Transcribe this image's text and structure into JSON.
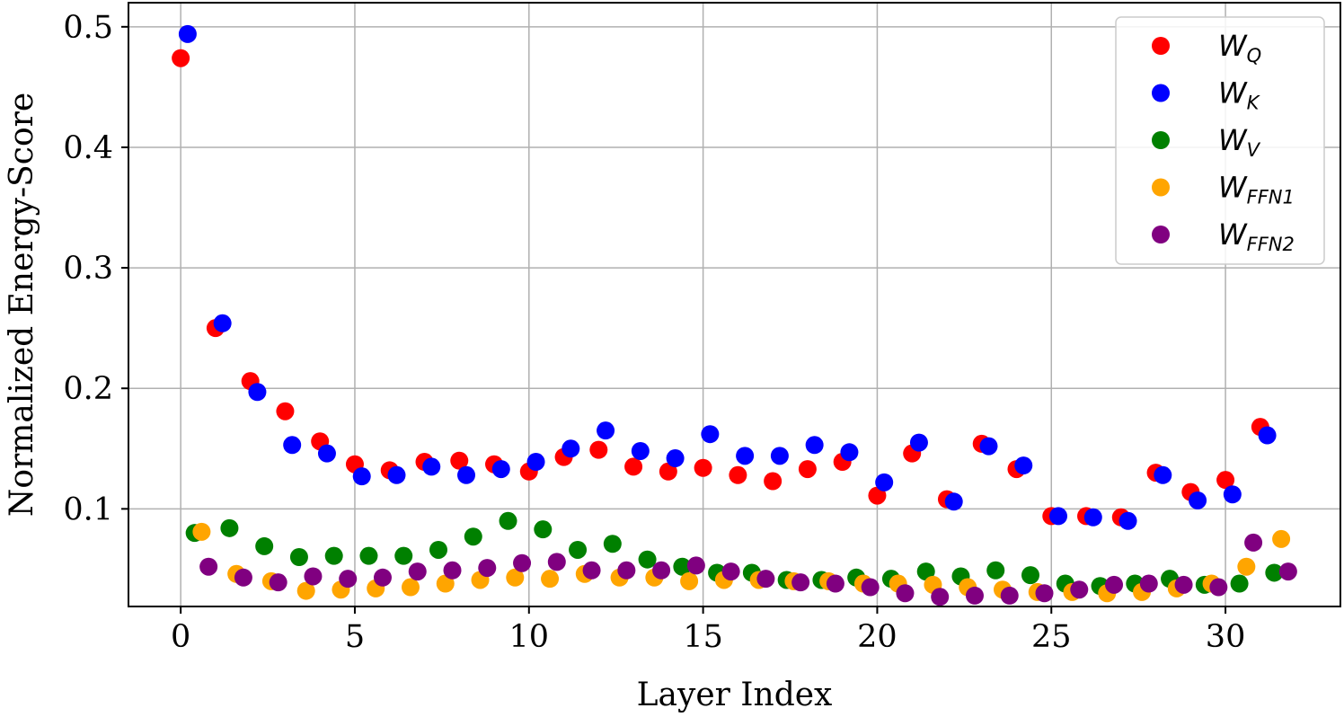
{
  "chart_data": {
    "type": "scatter",
    "xlabel": "Layer Index",
    "ylabel": "Normalized Energy-Score",
    "xlim": [
      -1.5,
      33.3
    ],
    "ylim": [
      0.019,
      0.52
    ],
    "xticks": [
      0,
      5,
      10,
      15,
      20,
      25,
      30
    ],
    "yticks": [
      0.1,
      0.2,
      0.3,
      0.4,
      0.5
    ],
    "x_tick_labels": [
      "0",
      "5",
      "10",
      "15",
      "20",
      "25",
      "30"
    ],
    "y_tick_labels": [
      "0.1",
      "0.2",
      "0.3",
      "0.4",
      "0.5"
    ],
    "grid": true,
    "legend_position": "top-right",
    "x": [
      0,
      1,
      2,
      3,
      4,
      5,
      6,
      7,
      8,
      9,
      10,
      11,
      12,
      13,
      14,
      15,
      16,
      17,
      18,
      19,
      20,
      21,
      22,
      23,
      24,
      25,
      26,
      27,
      28,
      29,
      30,
      31
    ],
    "series": [
      {
        "name": "W",
        "sub": "Q",
        "color": "#ff0000",
        "x_offset": 0.0,
        "values": [
          0.474,
          0.25,
          0.206,
          0.181,
          0.156,
          0.137,
          0.132,
          0.139,
          0.14,
          0.137,
          0.131,
          0.143,
          0.149,
          0.135,
          0.131,
          0.134,
          0.128,
          0.123,
          0.133,
          0.139,
          0.111,
          0.146,
          0.108,
          0.154,
          0.133,
          0.094,
          0.094,
          0.093,
          0.13,
          0.114,
          0.124,
          0.168
        ]
      },
      {
        "name": "W",
        "sub": "K",
        "color": "#0000ff",
        "x_offset": 0.2,
        "values": [
          0.494,
          0.254,
          0.197,
          0.153,
          0.146,
          0.127,
          0.128,
          0.135,
          0.128,
          0.133,
          0.139,
          0.15,
          0.165,
          0.148,
          0.142,
          0.162,
          0.144,
          0.144,
          0.153,
          0.147,
          0.122,
          0.155,
          0.106,
          0.152,
          0.136,
          0.094,
          0.093,
          0.09,
          0.128,
          0.107,
          0.112,
          0.161
        ]
      },
      {
        "name": "W",
        "sub": "V",
        "color": "#008000",
        "x_offset": 0.4,
        "values": [
          0.08,
          0.084,
          0.069,
          0.06,
          0.061,
          0.061,
          0.061,
          0.066,
          0.077,
          0.09,
          0.083,
          0.066,
          0.071,
          0.058,
          0.052,
          0.047,
          0.047,
          0.041,
          0.041,
          0.043,
          0.042,
          0.048,
          0.044,
          0.049,
          0.045,
          0.038,
          0.036,
          0.038,
          0.042,
          0.037,
          0.038,
          0.047
        ]
      },
      {
        "name": "W",
        "sub": "FFN1",
        "color": "#ffa500",
        "x_offset": 0.6,
        "values": [
          0.081,
          0.046,
          0.04,
          0.032,
          0.033,
          0.034,
          0.035,
          0.038,
          0.041,
          0.043,
          0.042,
          0.046,
          0.043,
          0.043,
          0.04,
          0.041,
          0.041,
          0.04,
          0.04,
          0.038,
          0.038,
          0.037,
          0.035,
          0.033,
          0.031,
          0.031,
          0.03,
          0.031,
          0.034,
          0.038,
          0.052,
          0.075
        ]
      },
      {
        "name": "W",
        "sub": "FFN2",
        "color": "#800080",
        "x_offset": 0.8,
        "values": [
          0.052,
          0.043,
          0.039,
          0.044,
          0.042,
          0.043,
          0.048,
          0.049,
          0.051,
          0.055,
          0.056,
          0.049,
          0.049,
          0.049,
          0.053,
          0.048,
          0.042,
          0.039,
          0.038,
          0.035,
          0.03,
          0.027,
          0.028,
          0.028,
          0.03,
          0.033,
          0.037,
          0.038,
          0.037,
          0.035,
          0.072,
          0.048
        ]
      }
    ]
  }
}
